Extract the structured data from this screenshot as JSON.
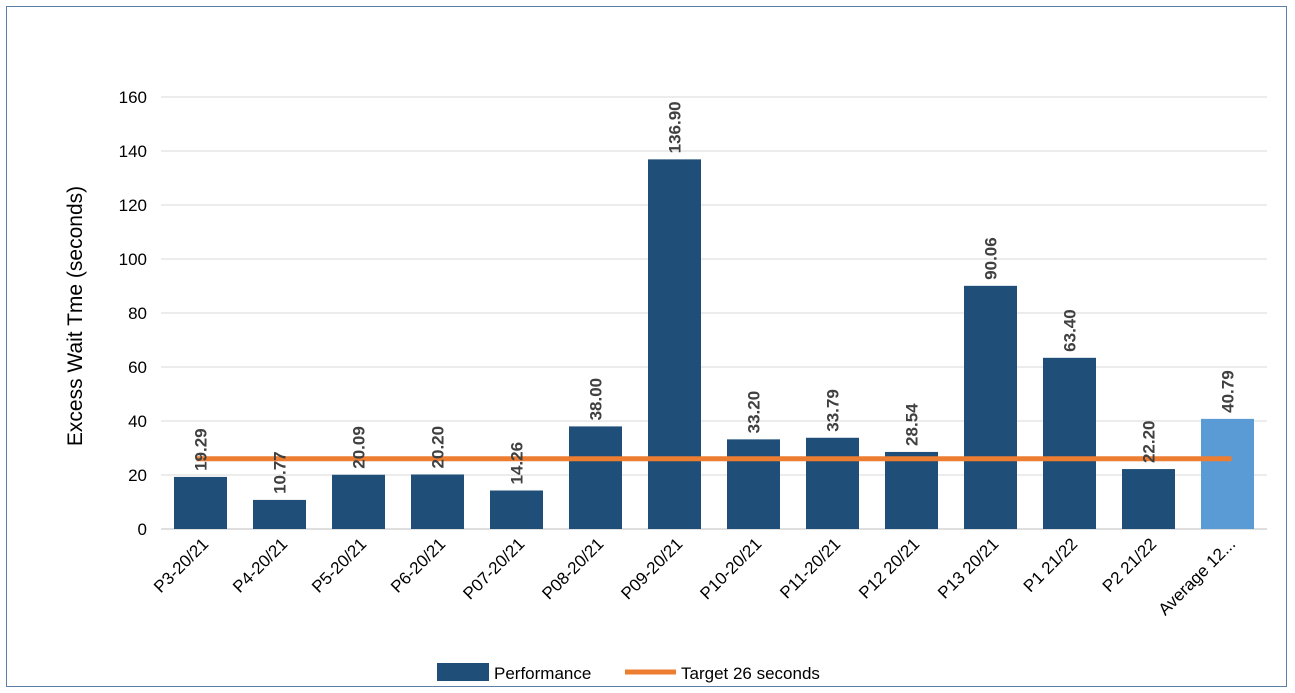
{
  "chart_data": {
    "type": "bar",
    "title": "",
    "xlabel": "",
    "ylabel": "Excess Wait Tme (seconds)",
    "ylim": [
      0,
      160
    ],
    "yticks": [
      0,
      20,
      40,
      60,
      80,
      100,
      120,
      140,
      160
    ],
    "grid": true,
    "legend_position": "bottom",
    "categories": [
      "P3-20/21",
      "P4-20/21",
      "P5-20/21",
      "P6-20/21",
      "P07-20/21",
      "P08-20/21",
      "P09-20/21",
      "P10-20/21",
      "P11-20/21",
      "P12 20/21",
      "P13 20/21",
      "P1 21/22",
      "P2 21/22",
      "Average 12..."
    ],
    "series": [
      {
        "name": "Performance",
        "type": "bar",
        "color": "#1f4e79",
        "highlight_color": "#5b9bd5",
        "highlight_index": 13,
        "values": [
          19.29,
          10.77,
          20.09,
          20.2,
          14.26,
          38.0,
          136.9,
          33.2,
          33.79,
          28.54,
          90.06,
          63.4,
          22.2,
          40.79
        ],
        "labels": [
          "19.29",
          "10.77",
          "20.09",
          "20.20",
          "14.26",
          "38.00",
          "136.90",
          "33.20",
          "33.79",
          "28.54",
          "90.06",
          "63.40",
          "22.20",
          "40.79"
        ]
      },
      {
        "name": "Target 26 seconds",
        "type": "line",
        "color": "#ed7d31",
        "value": 26
      }
    ]
  }
}
